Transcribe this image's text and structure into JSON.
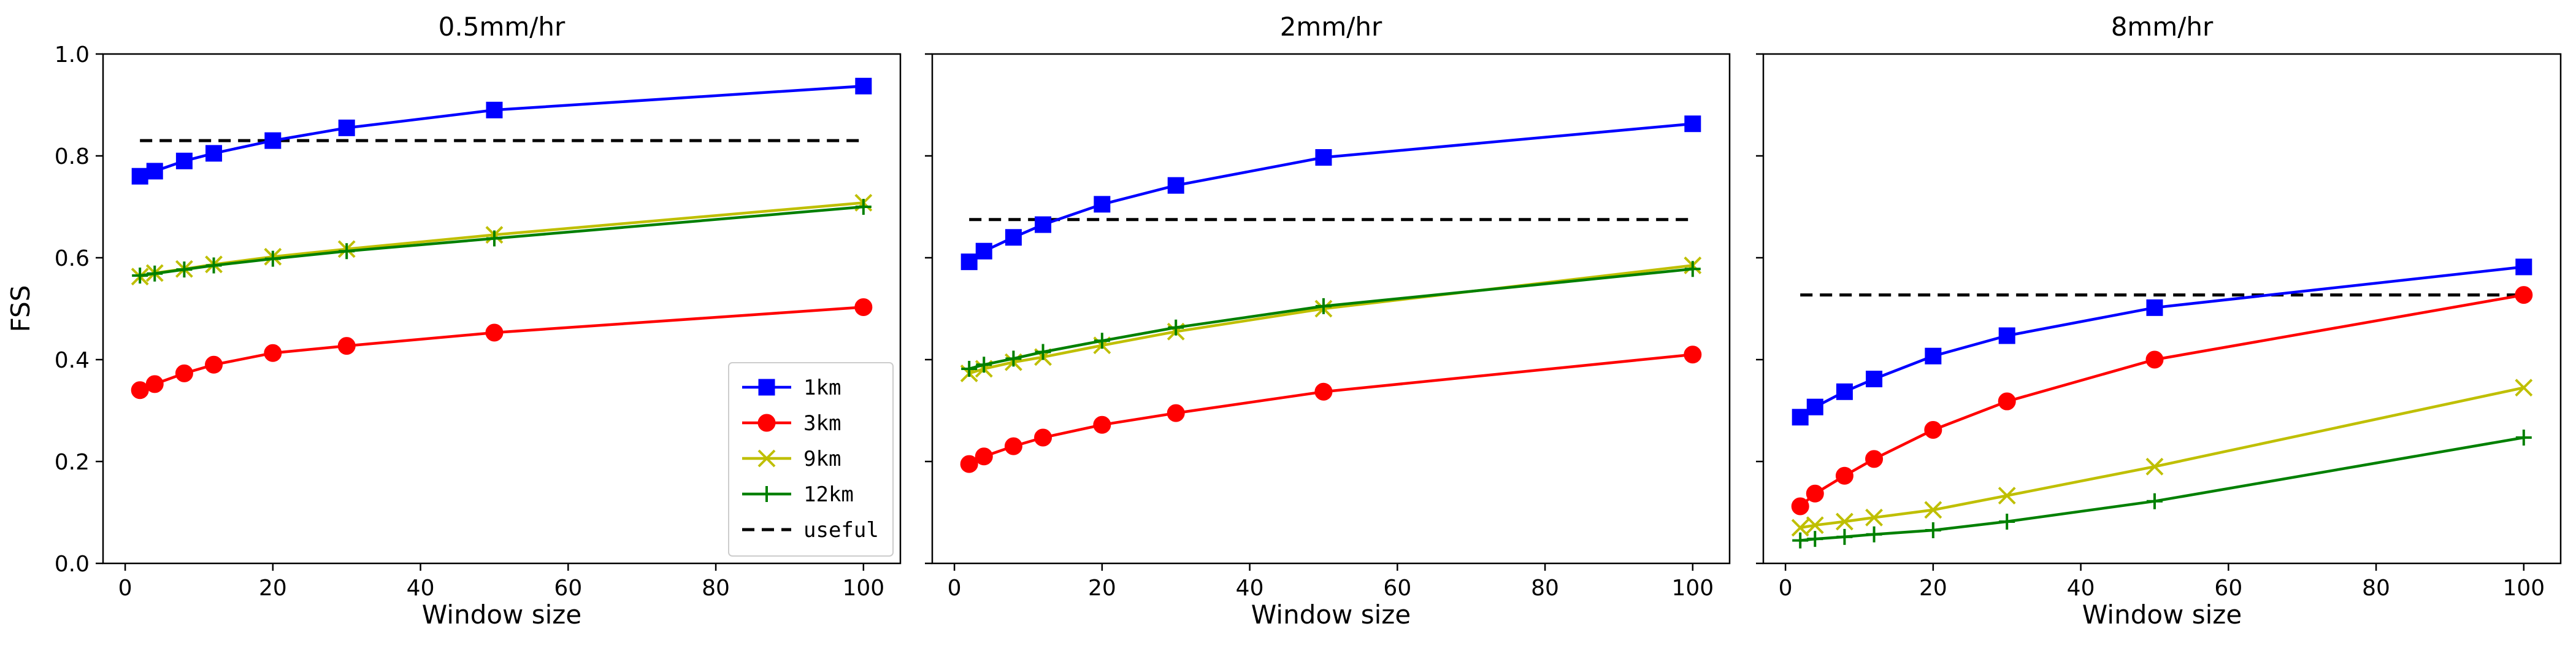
{
  "chart_data": [
    {
      "type": "line",
      "title": "0.5mm/hr",
      "xlabel": "Window size",
      "ylabel": "FSS",
      "xlim": [
        -3,
        105
      ],
      "ylim": [
        0.0,
        1.0
      ],
      "xticks": [
        0,
        20,
        40,
        60,
        80,
        100
      ],
      "xtick_labels": [
        "0",
        "20",
        "40",
        "60",
        "80",
        "100"
      ],
      "yticks": [
        0.0,
        0.2,
        0.4,
        0.6,
        0.8,
        1.0
      ],
      "ytick_labels": [
        "0.0",
        "0.2",
        "0.4",
        "0.6",
        "0.8",
        "1.0"
      ],
      "show_yticklabels": true,
      "grid": false,
      "legend": "lower right",
      "x": [
        2,
        4,
        8,
        12,
        20,
        30,
        50,
        100
      ],
      "series": [
        {
          "name": "1km",
          "color": "#0000ff",
          "marker": "square",
          "values": [
            0.76,
            0.77,
            0.79,
            0.805,
            0.83,
            0.855,
            0.89,
            0.937
          ]
        },
        {
          "name": "3km",
          "color": "#ff0000",
          "marker": "circle",
          "values": [
            0.34,
            0.352,
            0.373,
            0.39,
            0.413,
            0.427,
            0.453,
            0.503
          ]
        },
        {
          "name": "9km",
          "color": "#bfbf00",
          "marker": "x",
          "values": [
            0.563,
            0.57,
            0.578,
            0.587,
            0.602,
            0.617,
            0.645,
            0.708
          ]
        },
        {
          "name": "12km",
          "color": "#008000",
          "marker": "plus",
          "values": [
            0.565,
            0.569,
            0.577,
            0.585,
            0.598,
            0.613,
            0.638,
            0.7
          ]
        }
      ],
      "reference": {
        "name": "useful",
        "color": "#000000",
        "style": "dashed",
        "value": 0.83,
        "x_range": [
          2,
          100
        ]
      }
    },
    {
      "type": "line",
      "title": "2mm/hr",
      "xlabel": "Window size",
      "ylabel": "",
      "xlim": [
        -3,
        105
      ],
      "ylim": [
        0.0,
        1.0
      ],
      "xticks": [
        0,
        20,
        40,
        60,
        80,
        100
      ],
      "xtick_labels": [
        "0",
        "20",
        "40",
        "60",
        "80",
        "100"
      ],
      "yticks": [
        0.0,
        0.2,
        0.4,
        0.6,
        0.8,
        1.0
      ],
      "ytick_labels": [
        "0.0",
        "0.2",
        "0.4",
        "0.6",
        "0.8",
        "1.0"
      ],
      "show_yticklabels": false,
      "grid": false,
      "legend": "",
      "x": [
        2,
        4,
        8,
        12,
        20,
        30,
        50,
        100
      ],
      "series": [
        {
          "name": "1km",
          "color": "#0000ff",
          "marker": "square",
          "values": [
            0.592,
            0.613,
            0.64,
            0.665,
            0.705,
            0.742,
            0.797,
            0.863
          ]
        },
        {
          "name": "3km",
          "color": "#ff0000",
          "marker": "circle",
          "values": [
            0.195,
            0.21,
            0.23,
            0.247,
            0.272,
            0.295,
            0.337,
            0.41
          ]
        },
        {
          "name": "9km",
          "color": "#bfbf00",
          "marker": "x",
          "values": [
            0.373,
            0.382,
            0.395,
            0.405,
            0.428,
            0.455,
            0.5,
            0.585
          ]
        },
        {
          "name": "12km",
          "color": "#008000",
          "marker": "plus",
          "values": [
            0.382,
            0.39,
            0.402,
            0.415,
            0.437,
            0.463,
            0.505,
            0.578
          ]
        }
      ],
      "reference": {
        "name": "useful",
        "color": "#000000",
        "style": "dashed",
        "value": 0.675,
        "x_range": [
          2,
          100
        ]
      }
    },
    {
      "type": "line",
      "title": "8mm/hr",
      "xlabel": "Window size",
      "ylabel": "",
      "xlim": [
        -3,
        105
      ],
      "ylim": [
        0.0,
        1.0
      ],
      "xticks": [
        0,
        20,
        40,
        60,
        80,
        100
      ],
      "xtick_labels": [
        "0",
        "20",
        "40",
        "60",
        "80",
        "100"
      ],
      "yticks": [
        0.0,
        0.2,
        0.4,
        0.6,
        0.8,
        1.0
      ],
      "ytick_labels": [
        "0.0",
        "0.2",
        "0.4",
        "0.6",
        "0.8",
        "1.0"
      ],
      "show_yticklabels": false,
      "grid": false,
      "legend": "",
      "x": [
        2,
        4,
        8,
        12,
        20,
        30,
        50,
        100
      ],
      "series": [
        {
          "name": "1km",
          "color": "#0000ff",
          "marker": "square",
          "values": [
            0.287,
            0.307,
            0.337,
            0.362,
            0.407,
            0.447,
            0.502,
            0.582
          ]
        },
        {
          "name": "3km",
          "color": "#ff0000",
          "marker": "circle",
          "values": [
            0.112,
            0.137,
            0.172,
            0.205,
            0.262,
            0.318,
            0.4,
            0.527
          ]
        },
        {
          "name": "9km",
          "color": "#bfbf00",
          "marker": "x",
          "values": [
            0.07,
            0.075,
            0.082,
            0.09,
            0.105,
            0.133,
            0.19,
            0.345
          ]
        },
        {
          "name": "12km",
          "color": "#008000",
          "marker": "plus",
          "values": [
            0.045,
            0.048,
            0.052,
            0.057,
            0.065,
            0.082,
            0.122,
            0.247
          ]
        }
      ],
      "reference": {
        "name": "useful",
        "color": "#000000",
        "style": "dashed",
        "value": 0.527,
        "x_range": [
          2,
          100
        ]
      }
    }
  ]
}
